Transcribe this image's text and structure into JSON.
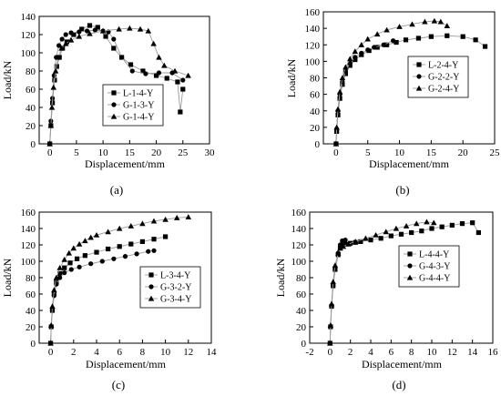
{
  "chart_data": [
    {
      "type": "line",
      "panel_label": "(a)",
      "xlabel": "Displacement/mm",
      "ylabel": "Load/kN",
      "xlim": [
        -2,
        30
      ],
      "ylim": [
        0,
        140
      ],
      "xticks": [
        0,
        5,
        10,
        15,
        20,
        25,
        30
      ],
      "yticks": [
        0,
        20,
        40,
        60,
        80,
        100,
        120,
        140
      ],
      "legend_position": "center",
      "series": [
        {
          "name": "L-1-4-Y",
          "marker": "square",
          "x": [
            0,
            0.2,
            0.5,
            0.9,
            1.3,
            1.8,
            2.4,
            3.2,
            4.5,
            6.0,
            7.5,
            9.0,
            10.5,
            12,
            13.5,
            15.2,
            17.5,
            20,
            22,
            24,
            24.5,
            25
          ],
          "y": [
            0,
            20,
            45,
            70,
            85,
            95,
            105,
            112,
            120,
            126,
            130,
            128,
            118,
            105,
            95,
            87,
            80,
            75,
            72,
            68,
            35,
            60
          ]
        },
        {
          "name": "G-1-3-Y",
          "marker": "circle",
          "x": [
            0,
            0.2,
            0.5,
            0.8,
            1.2,
            1.7,
            2.3,
            3.0,
            4.0,
            5.5,
            7.0,
            8.5,
            10.0,
            11.0,
            12.0,
            13.5,
            15.5,
            18,
            20.5,
            23,
            25
          ],
          "y": [
            0,
            25,
            50,
            75,
            95,
            108,
            115,
            120,
            122,
            123,
            124,
            125,
            124,
            123,
            115,
            95,
            80,
            77,
            78,
            78,
            70
          ]
        },
        {
          "name": "G-1-4-Y",
          "marker": "triangle",
          "x": [
            0,
            0.2,
            0.4,
            0.7,
            1.1,
            1.6,
            2.2,
            3.0,
            4.0,
            5.5,
            7.5,
            10.0,
            13.0,
            15.0,
            17.0,
            18.5,
            19.5,
            20.5,
            21.5,
            23.5,
            26
          ],
          "y": [
            0,
            20,
            40,
            62,
            80,
            95,
            105,
            110,
            114,
            118,
            121,
            124,
            126,
            127,
            126,
            124,
            110,
            95,
            86,
            80,
            75
          ]
        }
      ]
    },
    {
      "type": "line",
      "panel_label": "(b)",
      "xlabel": "Displacement/mm",
      "ylabel": "Load/kN",
      "xlim": [
        -2,
        25
      ],
      "ylim": [
        0,
        160
      ],
      "xticks": [
        0,
        5,
        10,
        15,
        20,
        25
      ],
      "yticks": [
        0,
        20,
        40,
        60,
        80,
        100,
        120,
        140,
        160
      ],
      "legend_position": "upper center",
      "series": [
        {
          "name": "L-2-4-Y",
          "marker": "square",
          "x": [
            0,
            0.1,
            0.3,
            0.6,
            1.0,
            1.5,
            2.2,
            3.0,
            4.0,
            5.2,
            6.5,
            8.0,
            9.5,
            11.0,
            13.0,
            15.0,
            17.5,
            20.0,
            22.0,
            23.5
          ],
          "y": [
            0,
            15,
            35,
            55,
            72,
            85,
            95,
            102,
            108,
            113,
            117,
            120,
            123,
            126,
            128,
            130,
            131,
            130,
            126,
            118
          ]
        },
        {
          "name": "G-2-2-Y",
          "marker": "circle",
          "x": [
            0,
            0.1,
            0.3,
            0.6,
            1.0,
            1.5,
            2.2,
            3.0,
            4.0,
            5.0,
            6.0,
            7.5,
            9.0
          ],
          "y": [
            0,
            18,
            40,
            60,
            75,
            88,
            98,
            105,
            110,
            114,
            117,
            120,
            125
          ]
        },
        {
          "name": "G-2-4-Y",
          "marker": "triangle",
          "x": [
            0,
            0.1,
            0.3,
            0.6,
            1.0,
            1.5,
            2.2,
            3.0,
            4.0,
            5.0,
            6.5,
            8.0,
            10.0,
            12.0,
            14.0,
            15.5,
            16.5,
            17.5
          ],
          "y": [
            0,
            20,
            42,
            63,
            80,
            93,
            103,
            112,
            120,
            127,
            133,
            138,
            142,
            145,
            148,
            149,
            148,
            143
          ]
        }
      ]
    },
    {
      "type": "line",
      "panel_label": "(c)",
      "xlabel": "Displacement/mm",
      "ylabel": "Load/kN",
      "xlim": [
        -1,
        14
      ],
      "ylim": [
        0,
        160
      ],
      "xticks": [
        0,
        2,
        4,
        6,
        8,
        10,
        12,
        14
      ],
      "yticks": [
        0,
        20,
        40,
        60,
        80,
        100,
        120,
        140,
        160
      ],
      "legend_position": "lower right",
      "series": [
        {
          "name": "L-3-4-Y",
          "marker": "square",
          "x": [
            0,
            0.05,
            0.15,
            0.3,
            0.5,
            0.8,
            1.2,
            1.7,
            2.3,
            3.0,
            4.0,
            5.0,
            6.0,
            7.0,
            8.0,
            9.0,
            10.0
          ],
          "y": [
            0,
            20,
            40,
            60,
            75,
            85,
            92,
            98,
            103,
            107,
            111,
            115,
            118,
            121,
            124,
            127,
            130
          ]
        },
        {
          "name": "G-3-2-Y",
          "marker": "circle",
          "x": [
            0,
            0.05,
            0.15,
            0.3,
            0.5,
            0.8,
            1.2,
            1.8,
            2.5,
            3.5,
            4.5,
            5.5,
            6.5,
            7.5,
            8.5,
            9.0
          ],
          "y": [
            0,
            20,
            40,
            58,
            72,
            80,
            86,
            90,
            93,
            97,
            100,
            103,
            106,
            109,
            112,
            113
          ]
        },
        {
          "name": "G-3-4-Y",
          "marker": "triangle",
          "x": [
            0,
            0.05,
            0.15,
            0.3,
            0.5,
            0.8,
            1.2,
            1.6,
            2.0,
            2.5,
            3.0,
            3.5,
            4.0,
            5.0,
            6.0,
            7.0,
            8.0,
            9.0,
            10.0,
            11.0,
            12.0
          ],
          "y": [
            0,
            22,
            45,
            65,
            80,
            92,
            102,
            110,
            116,
            121,
            125,
            129,
            132,
            136,
            140,
            143,
            146,
            149,
            151,
            153,
            154
          ]
        }
      ]
    },
    {
      "type": "line",
      "panel_label": "(d)",
      "xlabel": "Displacement/mm",
      "ylabel": "Load/kN",
      "xlim": [
        -2,
        16
      ],
      "ylim": [
        0,
        160
      ],
      "xticks": [
        -2,
        0,
        2,
        4,
        6,
        8,
        10,
        12,
        14,
        16
      ],
      "yticks": [
        0,
        20,
        40,
        60,
        80,
        100,
        120,
        140,
        160
      ],
      "legend_position": "center right",
      "series": [
        {
          "name": "L-4-4-Y",
          "marker": "square",
          "x": [
            0,
            0.05,
            0.15,
            0.3,
            0.5,
            0.8,
            1.0,
            1.2,
            1.5,
            2.0,
            2.5,
            3.0,
            4.0,
            5.0,
            6.0,
            7.0,
            8.0,
            9.0,
            10.0,
            11.0,
            12.0,
            13.0,
            14.0,
            14.6
          ],
          "y": [
            0,
            20,
            45,
            70,
            90,
            108,
            116,
            120,
            121,
            122,
            123,
            124,
            126,
            128,
            131,
            133,
            135,
            137,
            140,
            142,
            144,
            146,
            147,
            135
          ]
        },
        {
          "name": "G-4-3-Y",
          "marker": "circle",
          "x": [
            0,
            0.05,
            0.15,
            0.3,
            0.5,
            0.8,
            1.0,
            1.2,
            1.5
          ],
          "y": [
            0,
            20,
            45,
            70,
            90,
            110,
            120,
            125,
            126
          ]
        },
        {
          "name": "G-4-4-Y",
          "marker": "triangle",
          "x": [
            0,
            0.05,
            0.15,
            0.3,
            0.5,
            0.8,
            1.0,
            1.3,
            1.8,
            2.5,
            3.5,
            4.5,
            5.5,
            6.5,
            7.5,
            8.5,
            9.5,
            10.2
          ],
          "y": [
            0,
            22,
            48,
            75,
            95,
            110,
            116,
            118,
            121,
            124,
            128,
            132,
            136,
            140,
            143,
            146,
            148,
            147
          ]
        }
      ]
    }
  ]
}
